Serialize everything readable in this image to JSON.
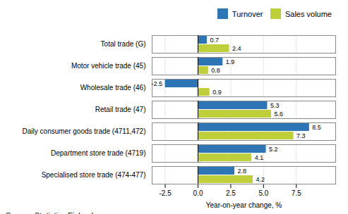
{
  "chart_data": {
    "type": "bar",
    "orientation": "horizontal",
    "categories": [
      "Total trade (G)",
      "Motor vehicle trade (45)",
      "Wholesale trade (46)",
      "Retail trade (47)",
      "Daily consumer goods trade (4711,472)",
      "Department store trade (4719)",
      "Specialised store trade (474-477)"
    ],
    "series": [
      {
        "name": "Turnover",
        "color": "#2E75B6",
        "values": [
          0.7,
          1.9,
          -2.5,
          5.3,
          8.5,
          5.2,
          2.8
        ]
      },
      {
        "name": "Sales volume",
        "color": "#BFCE3B",
        "values": [
          2.4,
          0.8,
          0.9,
          5.6,
          7.3,
          4.1,
          4.2
        ]
      }
    ],
    "xlabel": "Year-on-year change, %",
    "xlim": [
      -3.5,
      10.5
    ],
    "xticks": [
      -2.5,
      {
        "value": 0.0,
        "label": "0.0"
      },
      2.5,
      {
        "value": 5.0,
        "label": "5.0"
      },
      7.5
    ],
    "grid": true,
    "legend": "upper right",
    "data_labels": true,
    "caption": "Source: Statistics Finland"
  }
}
